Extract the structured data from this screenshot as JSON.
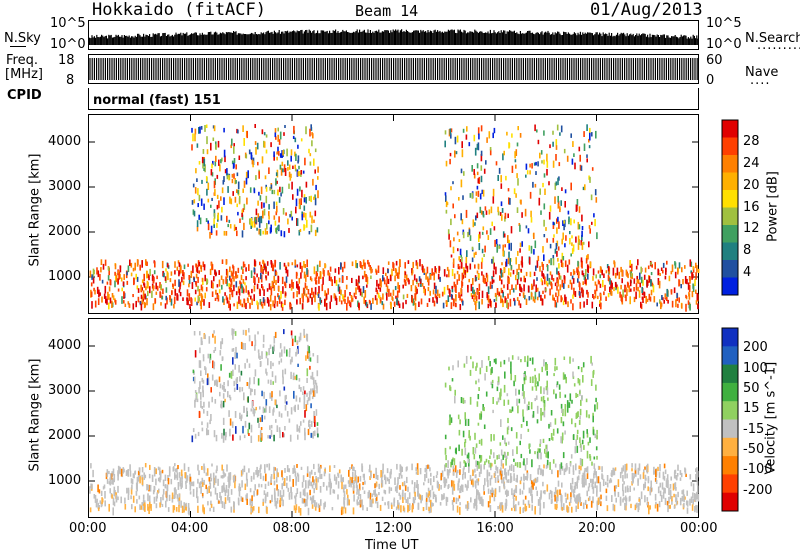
{
  "header": {
    "station": "Hokkaido (fitACF)",
    "beam": "Beam 14",
    "date": "01/Aug/2013"
  },
  "top_panels": {
    "nsky_label": "N.Sky",
    "nsky_ticks": [
      "10^5",
      "10^0"
    ],
    "nsearch_label": "N.Search",
    "nsearch_ticks": [
      "10^5",
      "10^0"
    ],
    "freq_label_line1": "Freq.",
    "freq_label_line2": "[MHz]",
    "freq_ticks": [
      "18",
      "8"
    ],
    "nave_label": "Nave",
    "nave_ticks": [
      "60",
      "0"
    ],
    "cpid_label": "CPID",
    "cpid_text": "normal (fast) 151"
  },
  "chart_data": [
    {
      "type": "heatmap",
      "title": "",
      "xlabel": "",
      "ylabel": "Slant Range [km]",
      "x_ticks": [
        "00:00",
        "04:00",
        "08:00",
        "12:00",
        "16:00",
        "20:00",
        "00:00"
      ],
      "xlim_hours": [
        0,
        24
      ],
      "y_ticks": [
        1000,
        2000,
        3000,
        4000
      ],
      "ylim": [
        200,
        4600
      ],
      "colorbar": {
        "label": "Power [dB]",
        "ticks": [
          "28",
          "24",
          "20",
          "16",
          "12",
          "8",
          "4"
        ],
        "range": [
          0,
          32
        ],
        "colors": [
          "#e00000",
          "#ff4000",
          "#ff8000",
          "#ffb000",
          "#ffe000",
          "#a0c040",
          "#40a060",
          "#208080",
          "#2050a0",
          "#0020e0"
        ]
      },
      "regions": [
        {
          "name": "strong near-range band",
          "x_hours": [
            0,
            24
          ],
          "y_km": [
            400,
            1400
          ],
          "level_db": 26
        },
        {
          "name": "morning far-range patch",
          "x_hours": [
            4,
            9
          ],
          "y_km": [
            2000,
            4400
          ],
          "level_db": 16
        },
        {
          "name": "evening far-range patch",
          "x_hours": [
            14,
            20
          ],
          "y_km": [
            1400,
            4400
          ],
          "level_db": 20
        }
      ]
    },
    {
      "type": "heatmap",
      "title": "",
      "xlabel": "Time UT",
      "ylabel": "Slant Range [km]",
      "x_ticks": [
        "00:00",
        "04:00",
        "08:00",
        "12:00",
        "16:00",
        "20:00",
        "00:00"
      ],
      "xlim_hours": [
        0,
        24
      ],
      "y_ticks": [
        1000,
        2000,
        3000,
        4000
      ],
      "ylim": [
        200,
        4600
      ],
      "colorbar": {
        "label": "Velocity [m s^-1]",
        "ticks": [
          "200",
          "100",
          "50",
          "15",
          "-15",
          "-50",
          "-100",
          "-200"
        ],
        "range": [
          -250,
          250
        ],
        "colors": [
          "#1030c0",
          "#2060c0",
          "#208040",
          "#40b040",
          "#90d060",
          "#c0c0c0",
          "#ffb040",
          "#ff8000",
          "#ff4000",
          "#e00000"
        ]
      },
      "regions": [
        {
          "name": "ground scatter band",
          "x_hours": [
            0,
            24
          ],
          "y_km": [
            400,
            1400
          ],
          "velocity": 0
        },
        {
          "name": "morning far-range patch",
          "x_hours": [
            4,
            9
          ],
          "y_km": [
            2000,
            4400
          ],
          "velocity": 0
        },
        {
          "name": "evening positive-velocity patch",
          "x_hours": [
            14,
            20
          ],
          "y_km": [
            1400,
            3800
          ],
          "velocity": 60
        }
      ]
    }
  ]
}
